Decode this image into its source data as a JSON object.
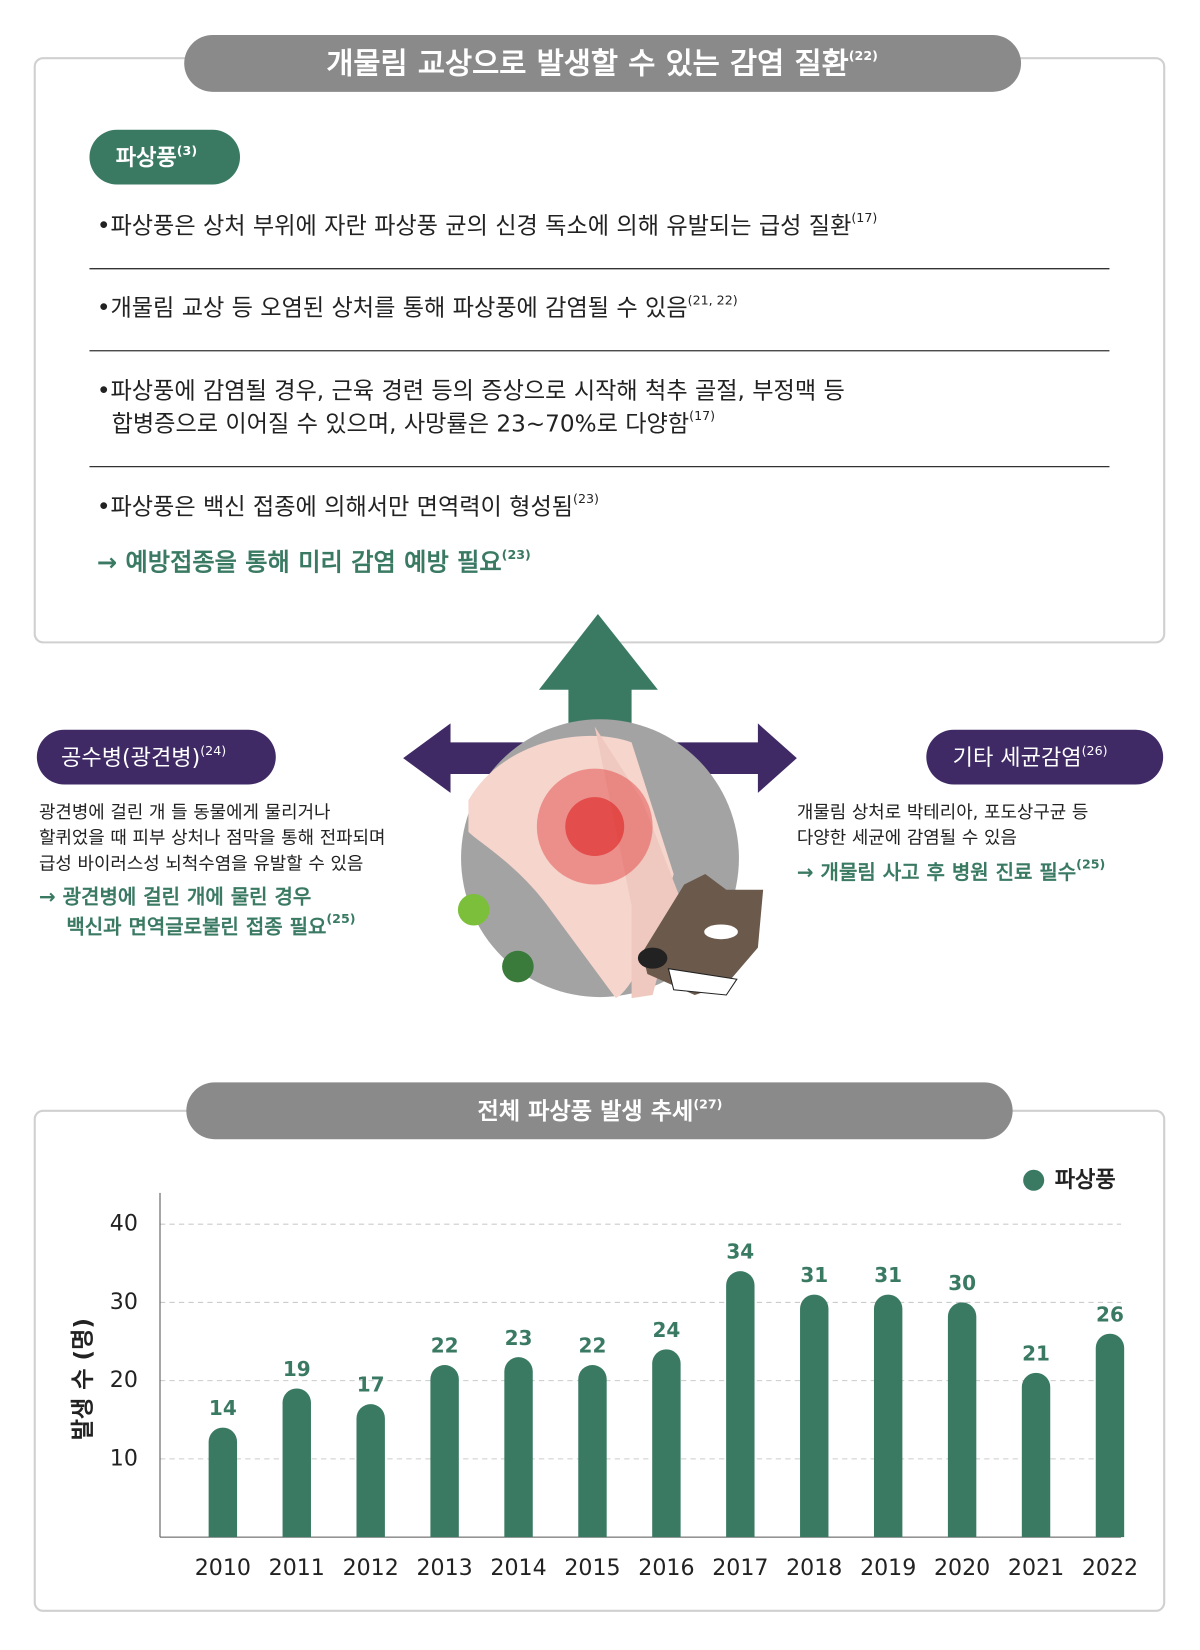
{
  "header": {
    "title": "개물림 교상으로 발생할 수 있는 감염 질환",
    "ref": "(22)"
  },
  "tetanus": {
    "label": "파상풍",
    "ref": "(3)",
    "items": [
      {
        "lines": [
          "•파상풍은 상처 부위에 자란 파상풍 균의 신경 독소에 의해 유발되는 급성 질환"
        ],
        "ref": "(17)"
      },
      {
        "lines": [
          "•개물림 교상 등 오염된 상처를 통해 파상풍에 감염될 수 있음"
        ],
        "ref": "(21, 22)"
      },
      {
        "lines": [
          "•파상풍에 감염될 경우, 근육 경련 등의 증상으로 시작해 척추 골절, 부정맥 등",
          "합병증으로 이어질 수 있으며, 사망률은 23~70%로 다양함"
        ],
        "ref": "(17)"
      },
      {
        "lines": [
          "•파상풍은 백신 접종에 의해서만 면역력이 형성됨"
        ],
        "ref": "(23)"
      }
    ],
    "conclusion": {
      "text": "→ 예방접종을 통해 미리 감염 예방 필요",
      "ref": "(23)"
    }
  },
  "rabies": {
    "label": "공수병(광견병)",
    "ref": "(24)",
    "lines": [
      "광견병에 걸린 개 들 동물에게 물리거나",
      "할퀴었을 때 피부 상처나 점막을 통해 전파되며",
      "급성 바이러스성 뇌척수염을 유발할 수 있음"
    ],
    "conclusion": {
      "lines": [
        "→ 광견병에 걸린 개에 물린 경우",
        "백신과 면역글로불린 접종 필요"
      ],
      "ref": "(25)"
    }
  },
  "other": {
    "label": "기타 세균감염",
    "ref": "(26)",
    "lines": [
      "개물림 상처로 박테리아, 포도상구균 등",
      "다양한 세균에 감염될 수 있음"
    ],
    "conclusion": {
      "text": "→ 개물림 사고 후 병원 진료 필수",
      "ref": "(25)"
    }
  },
  "chart_data": {
    "type": "bar",
    "title": "전체 파상풍 발생 추세",
    "title_ref": "(27)",
    "y_label": "발생 수 (명)",
    "categories": [
      "2010",
      "2011",
      "2012",
      "2013",
      "2014",
      "2015",
      "2016",
      "2017",
      "2018",
      "2019",
      "2020",
      "2021",
      "2022"
    ],
    "series": [
      {
        "name": "파상풍",
        "color": "#3a7a63",
        "values": [
          14,
          19,
          17,
          22,
          23,
          22,
          24,
          34,
          31,
          31,
          30,
          21,
          26
        ]
      }
    ],
    "ylim": [
      0,
      44
    ],
    "yticks": [
      10,
      20,
      30,
      40
    ],
    "grid": true,
    "legend": "top-right"
  }
}
